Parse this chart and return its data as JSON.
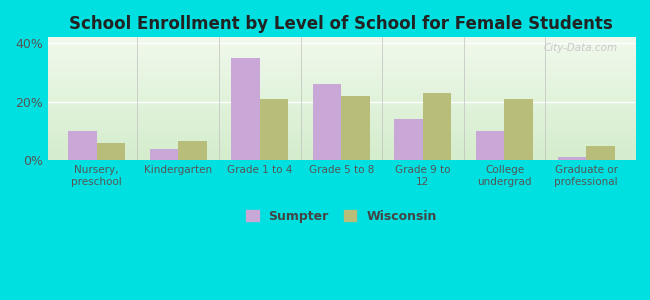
{
  "title": "School Enrollment by Level of School for Female Students",
  "categories": [
    "Nursery,\npreschool",
    "Kindergarten",
    "Grade 1 to 4",
    "Grade 5 to 8",
    "Grade 9 to\n12",
    "College\nundergrad",
    "Graduate or\nprofessional"
  ],
  "sumpter": [
    10.0,
    4.0,
    35.0,
    26.0,
    14.0,
    10.0,
    1.0
  ],
  "wisconsin": [
    6.0,
    6.5,
    21.0,
    22.0,
    23.0,
    21.0,
    5.0
  ],
  "sumpter_color": "#c9a8d8",
  "wisconsin_color": "#b8be7a",
  "background_outer": "#00e0e0",
  "ylim": [
    0,
    42
  ],
  "yticks": [
    0,
    20,
    40
  ],
  "ytick_labels": [
    "0%",
    "20%",
    "40%"
  ],
  "bar_width": 0.35,
  "legend_sumpter": "Sumpter",
  "legend_wisconsin": "Wisconsin",
  "watermark": "City-Data.com"
}
